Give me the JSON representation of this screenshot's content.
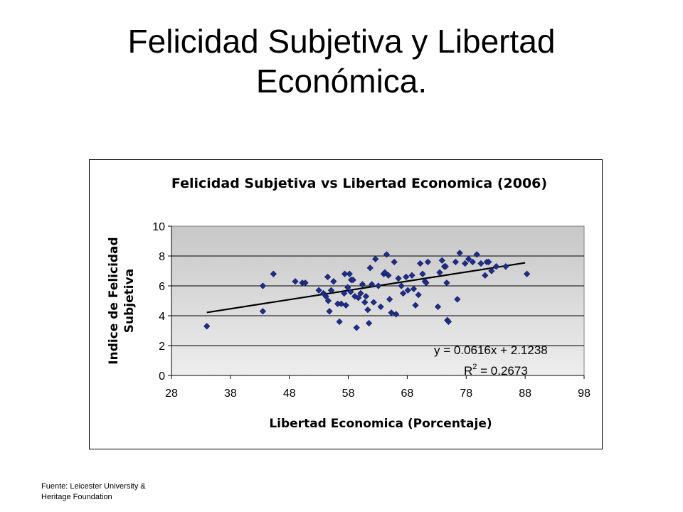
{
  "slide": {
    "title_line1": "Felicidad Subjetiva y Libertad",
    "title_line2": "Económica.",
    "source_line1": "Fuente: Leicester University &",
    "source_line2": "Heritage Foundation"
  },
  "chart_data": {
    "type": "scatter",
    "title": "Felicidad Subjetiva vs Libertad Economica (2006)",
    "xlabel": "Libertad Economica (Porcentaje)",
    "ylabel_line1": "Indice de Felicidad",
    "ylabel_line2": "Subjetiva",
    "xlim": [
      28,
      98
    ],
    "ylim": [
      0,
      10
    ],
    "xticks": [
      28,
      38,
      48,
      58,
      68,
      78,
      88,
      98
    ],
    "yticks": [
      0,
      2,
      4,
      6,
      8,
      10
    ],
    "grid": "horizontal",
    "plot_background": "gradient-gray",
    "marker_color": "#1f2d8a",
    "trendline": {
      "type": "linear",
      "slope": 0.0616,
      "intercept": 2.1238,
      "x_range": [
        34,
        88
      ],
      "equation_label": "y = 0.0616x + 2.1238",
      "r2_label": "R",
      "r2_value_label": " = 0.2673"
    },
    "x": [
      34.0,
      43.5,
      43.5,
      45.3,
      49.0,
      50.2,
      50.7,
      53.0,
      53.8,
      54.2,
      54.5,
      54.6,
      54.8,
      55.1,
      55.5,
      56.2,
      56.5,
      56.8,
      57.3,
      57.4,
      57.6,
      57.9,
      58.2,
      58.4,
      58.5,
      58.8,
      59.1,
      59.4,
      59.7,
      60.1,
      60.4,
      60.8,
      61.0,
      61.3,
      61.5,
      61.7,
      62.0,
      62.3,
      62.6,
      63.1,
      63.5,
      64.0,
      64.2,
      64.5,
      64.8,
      65.0,
      65.3,
      65.8,
      66.1,
      66.5,
      67.0,
      67.3,
      67.8,
      68.1,
      68.8,
      69.1,
      69.4,
      69.9,
      70.2,
      70.6,
      71.0,
      71.2,
      71.5,
      73.2,
      73.5,
      73.9,
      74.3,
      74.5,
      74.7,
      74.8,
      75.0,
      76.2,
      76.5,
      76.9,
      77.8,
      78.4,
      79.1,
      79.8,
      80.5,
      81.2,
      81.5,
      81.8,
      82.3,
      83.1,
      84.7,
      88.3
    ],
    "y": [
      3.3,
      4.3,
      6.0,
      6.8,
      6.3,
      6.2,
      6.2,
      5.7,
      5.5,
      5.3,
      6.6,
      5.0,
      4.3,
      5.7,
      6.3,
      4.8,
      3.6,
      4.8,
      5.5,
      6.8,
      4.7,
      5.9,
      6.8,
      5.6,
      6.4,
      6.4,
      5.3,
      3.2,
      5.2,
      5.5,
      6.1,
      4.9,
      5.3,
      4.4,
      3.5,
      7.2,
      6.1,
      4.9,
      7.8,
      6.0,
      4.6,
      6.8,
      6.9,
      8.1,
      6.7,
      5.1,
      4.2,
      7.6,
      4.1,
      6.5,
      6.0,
      5.5,
      6.6,
      5.7,
      6.7,
      5.8,
      4.7,
      5.4,
      7.5,
      6.8,
      6.3,
      6.2,
      7.6,
      4.6,
      6.9,
      7.7,
      7.3,
      7.3,
      6.2,
      3.7,
      3.6,
      7.6,
      5.1,
      8.2,
      7.5,
      7.8,
      7.6,
      8.1,
      7.5,
      6.7,
      7.6,
      7.6,
      7.0,
      7.3,
      7.3,
      6.8
    ]
  }
}
